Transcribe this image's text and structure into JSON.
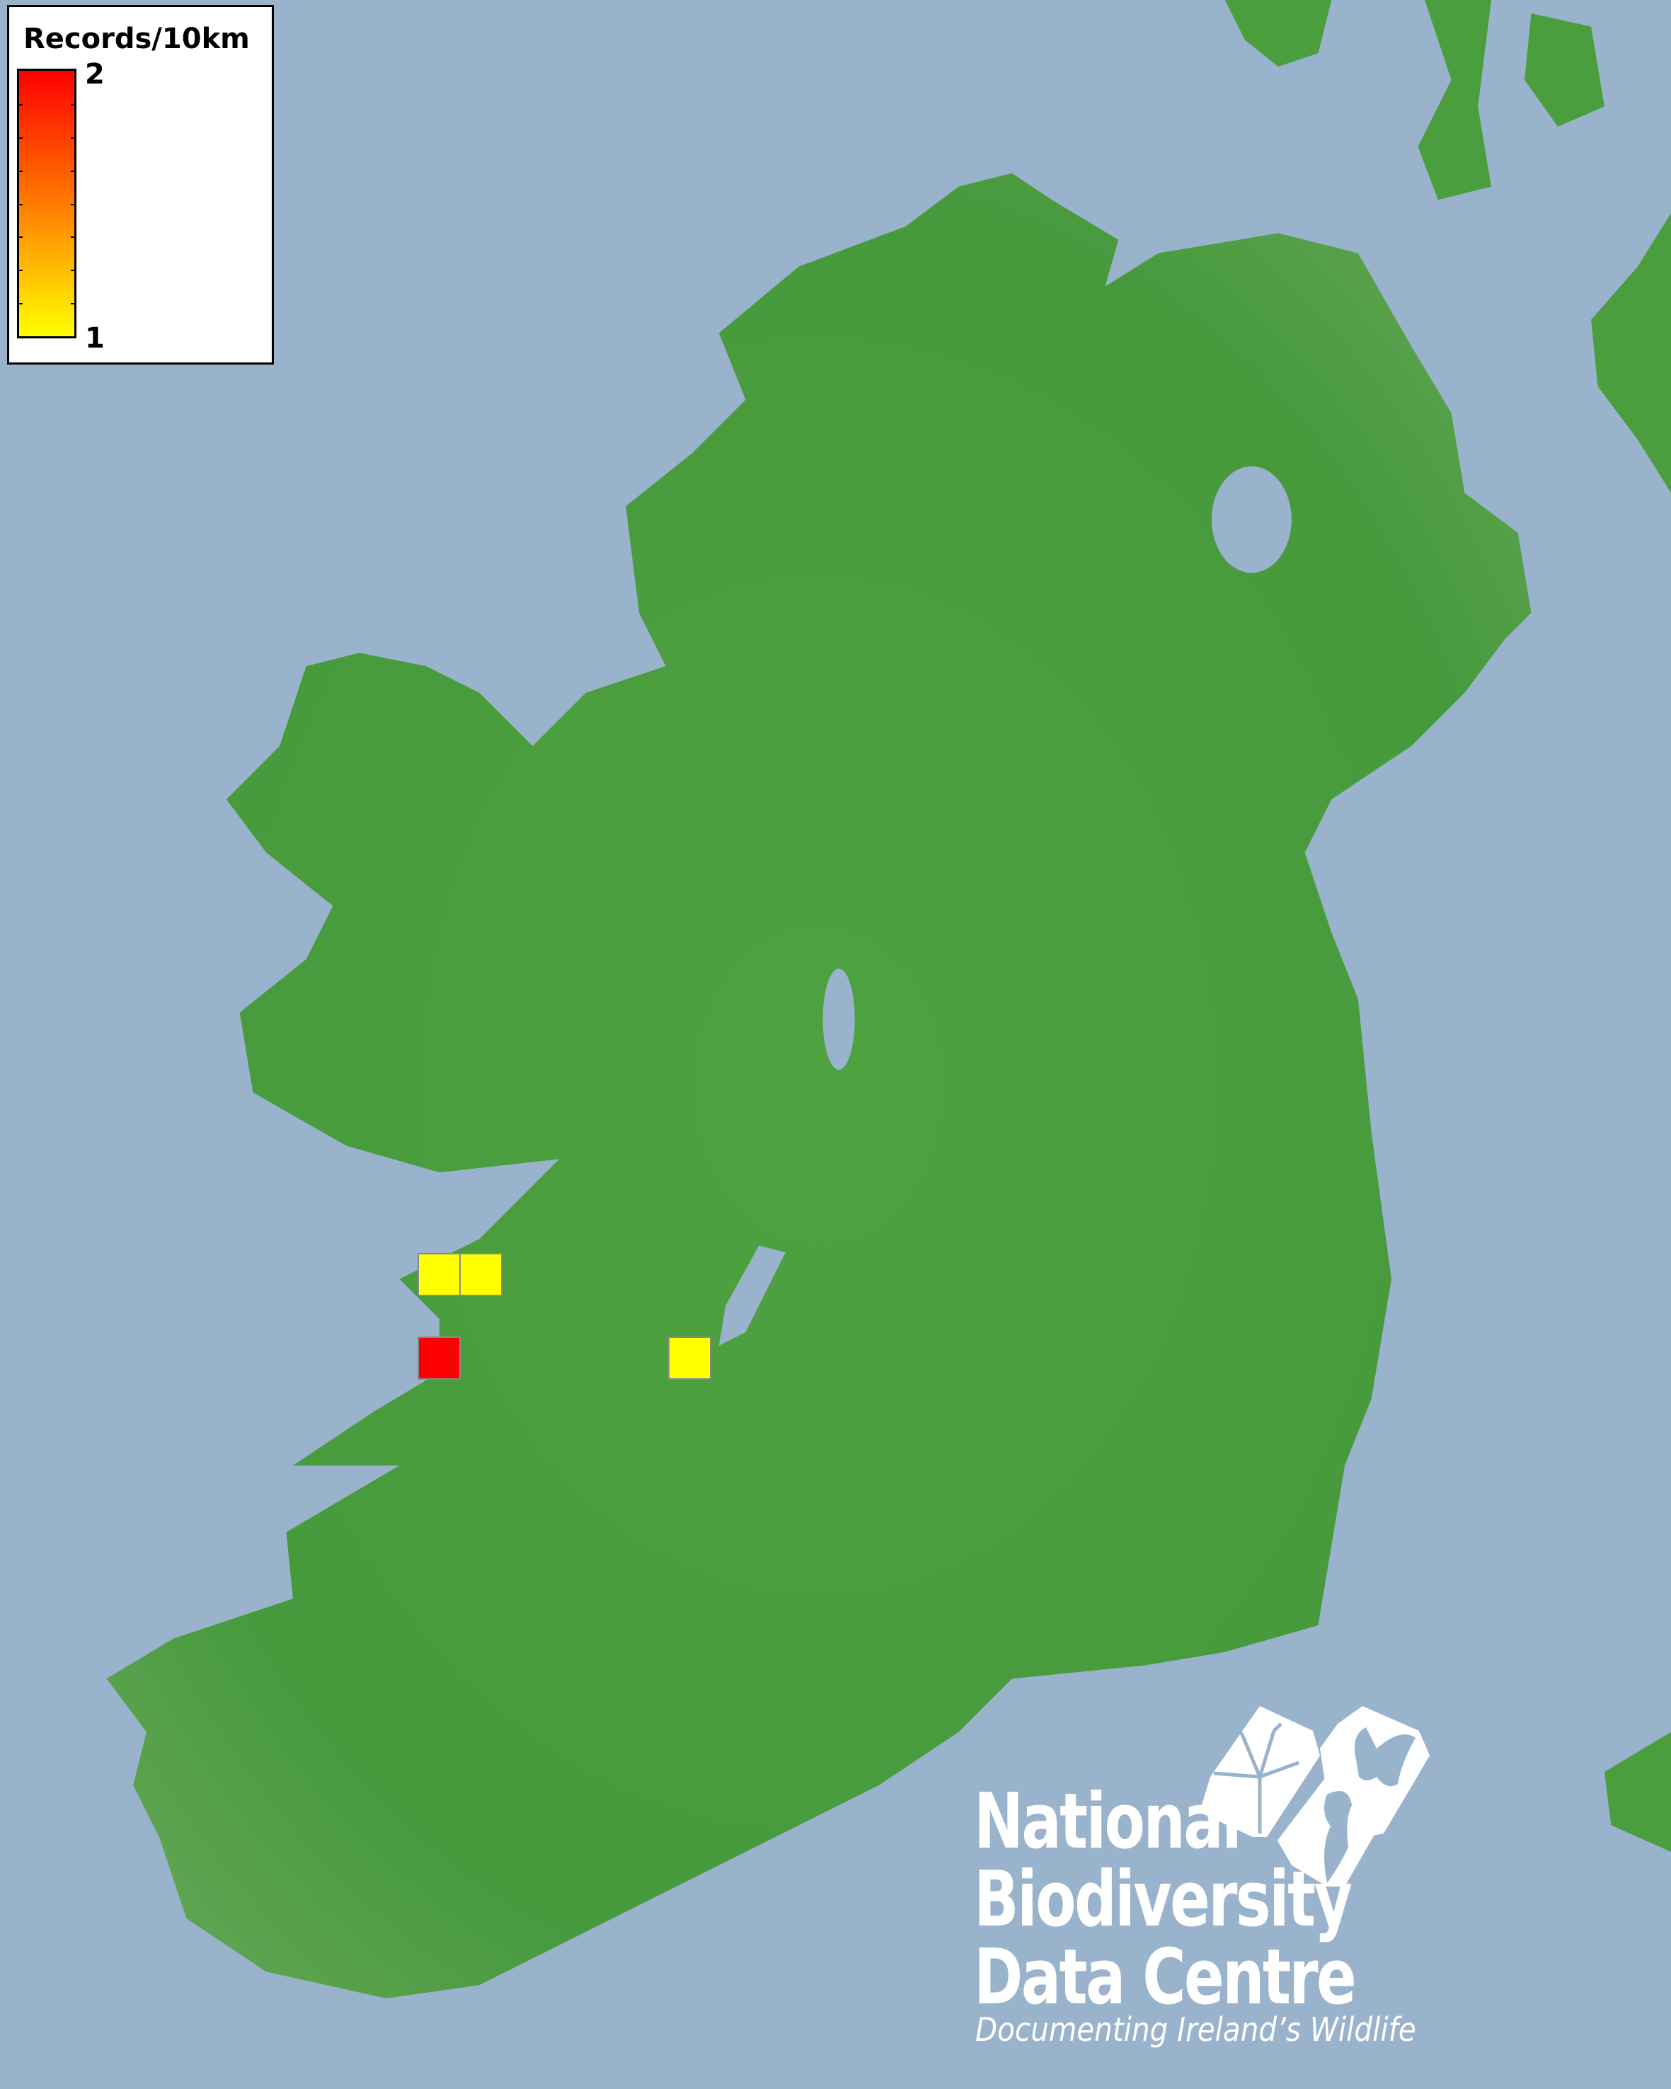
{
  "legend": {
    "title": "Records/10km",
    "max_label": "2",
    "min_label": "1",
    "color_max": "#ff0000",
    "color_min": "#ffff00"
  },
  "records": [
    {
      "value": 1,
      "color": "#ffff00"
    },
    {
      "value": 1,
      "color": "#ffff00"
    },
    {
      "value": 2,
      "color": "#ff0000"
    },
    {
      "value": 1,
      "color": "#ffff00"
    }
  ],
  "colors": {
    "sea": "#9ab3cc",
    "land": "#4a9e3e"
  },
  "logo": {
    "line1": "National",
    "line2": "Biodiversity",
    "line3": "Data Centre",
    "tagline": "Documenting Ireland’s Wildlife",
    "icons": [
      "tree-icon",
      "butterfly-icon",
      "seahorse-icon"
    ]
  }
}
